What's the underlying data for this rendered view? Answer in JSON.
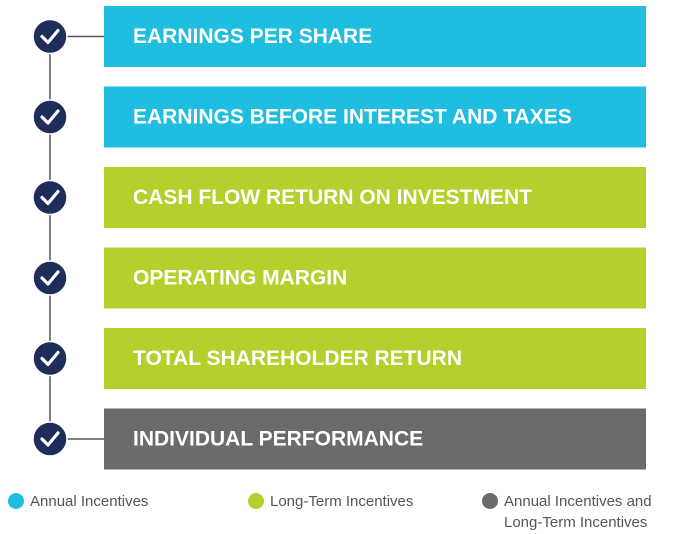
{
  "items": [
    {
      "label": "EARNINGS PER SHARE",
      "category": 0
    },
    {
      "label": "EARNINGS BEFORE INTEREST AND TAXES",
      "category": 0
    },
    {
      "label": "CASH FLOW RETURN ON INVESTMENT",
      "category": 1
    },
    {
      "label": "OPERATING MARGIN",
      "category": 1
    },
    {
      "label": "TOTAL SHAREHOLDER RETURN",
      "category": 1
    },
    {
      "label": "INDIVIDUAL PERFORMANCE",
      "category": 2
    }
  ],
  "legend": [
    {
      "lines": [
        "Annual Incentives"
      ],
      "color": "#1fbde0"
    },
    {
      "lines": [
        "Long-Term Incentives"
      ],
      "color": "#b5cf2d"
    },
    {
      "lines": [
        "Annual Incentives and",
        "Long-Term Incentives"
      ],
      "color": "#6b6b6e"
    }
  ]
}
